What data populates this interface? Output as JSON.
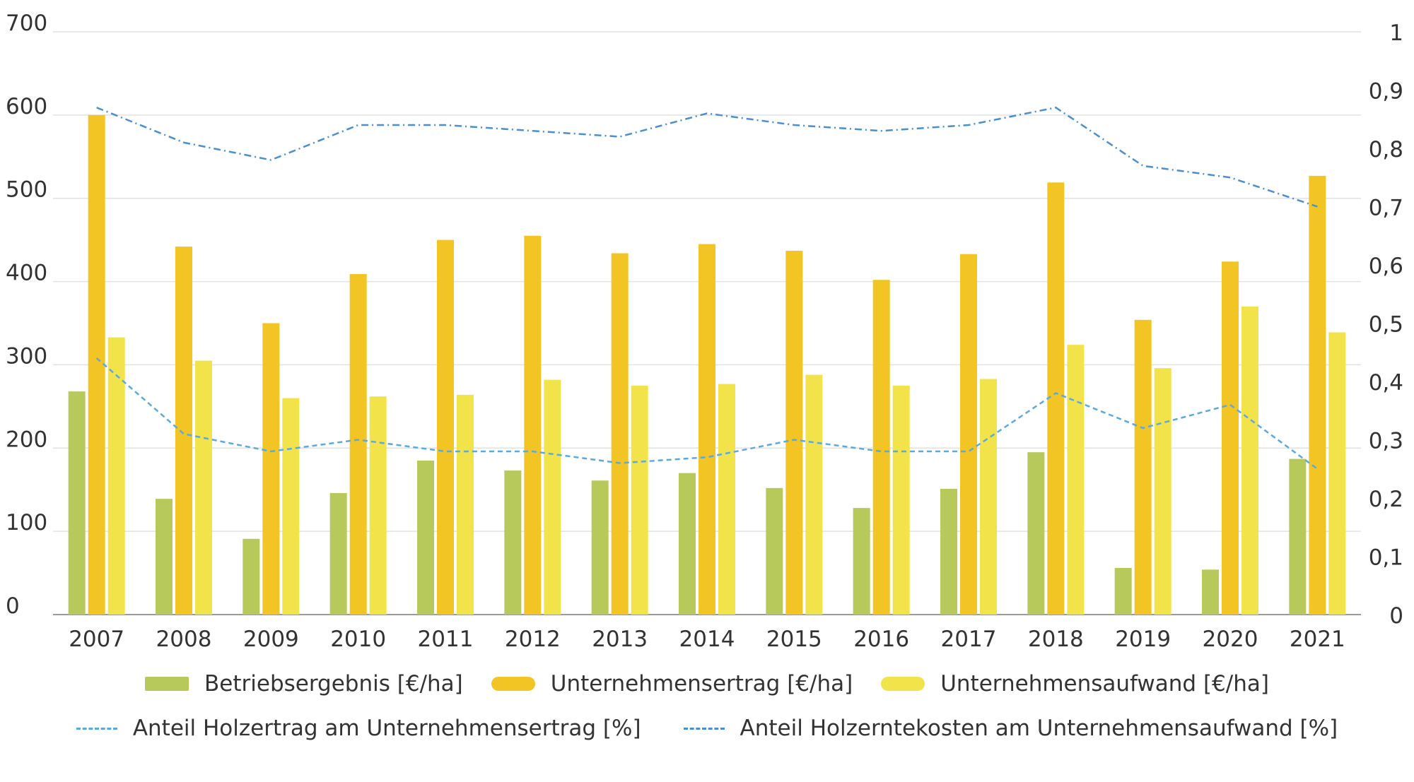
{
  "chart_data": {
    "type": "bar",
    "categories": [
      "2007",
      "2008",
      "2009",
      "2010",
      "2011",
      "2012",
      "2013",
      "2014",
      "2015",
      "2016",
      "2017",
      "2018",
      "2019",
      "2020",
      "2021"
    ],
    "series": [
      {
        "name": "Betriebsergebnis [€/ha]",
        "kind": "bar",
        "axis": "left",
        "color": "#b6c95a",
        "values": [
          268,
          139,
          91,
          146,
          185,
          173,
          161,
          170,
          152,
          128,
          151,
          195,
          56,
          54,
          187
        ]
      },
      {
        "name": "Unternehmensertrag [€/ha]",
        "kind": "bar",
        "axis": "left",
        "color": "#f2c524",
        "values": [
          600,
          442,
          350,
          409,
          450,
          455,
          434,
          445,
          437,
          402,
          433,
          519,
          354,
          424,
          527
        ]
      },
      {
        "name": "Unternehmensaufwand [€/ha]",
        "kind": "bar",
        "axis": "left",
        "color": "#f3e34a",
        "values": [
          333,
          305,
          260,
          262,
          264,
          282,
          275,
          277,
          288,
          275,
          283,
          324,
          296,
          370,
          339
        ]
      },
      {
        "name": "Anteil Holzertrag am Unternehmensertrag [%]",
        "kind": "line",
        "axis": "right",
        "color": "#5aa9df",
        "style": "dashed",
        "values": [
          0.44,
          0.31,
          0.28,
          0.3,
          0.28,
          0.28,
          0.26,
          0.27,
          0.3,
          0.28,
          0.28,
          0.38,
          0.32,
          0.36,
          0.25
        ]
      },
      {
        "name": "Anteil Holzerntekosten am Unternehmensaufwand [%]",
        "kind": "line",
        "axis": "right",
        "color": "#4a8fd0",
        "style": "dashdot",
        "values": [
          0.87,
          0.81,
          0.78,
          0.84,
          0.84,
          0.83,
          0.82,
          0.86,
          0.84,
          0.83,
          0.84,
          0.87,
          0.77,
          0.75,
          0.7
        ]
      }
    ],
    "y_left": {
      "min": 0,
      "max": 700,
      "ticks": [
        "0",
        "100",
        "200",
        "300",
        "400",
        "500",
        "600",
        "700"
      ]
    },
    "y_right": {
      "min": 0,
      "max": 1,
      "ticks": [
        "0",
        "0,1",
        "0,2",
        "0,3",
        "0,4",
        "0,5",
        "0,6",
        "0,7",
        "0,8",
        "0,9",
        "1"
      ]
    },
    "grid": true,
    "legend_position": "bottom"
  }
}
